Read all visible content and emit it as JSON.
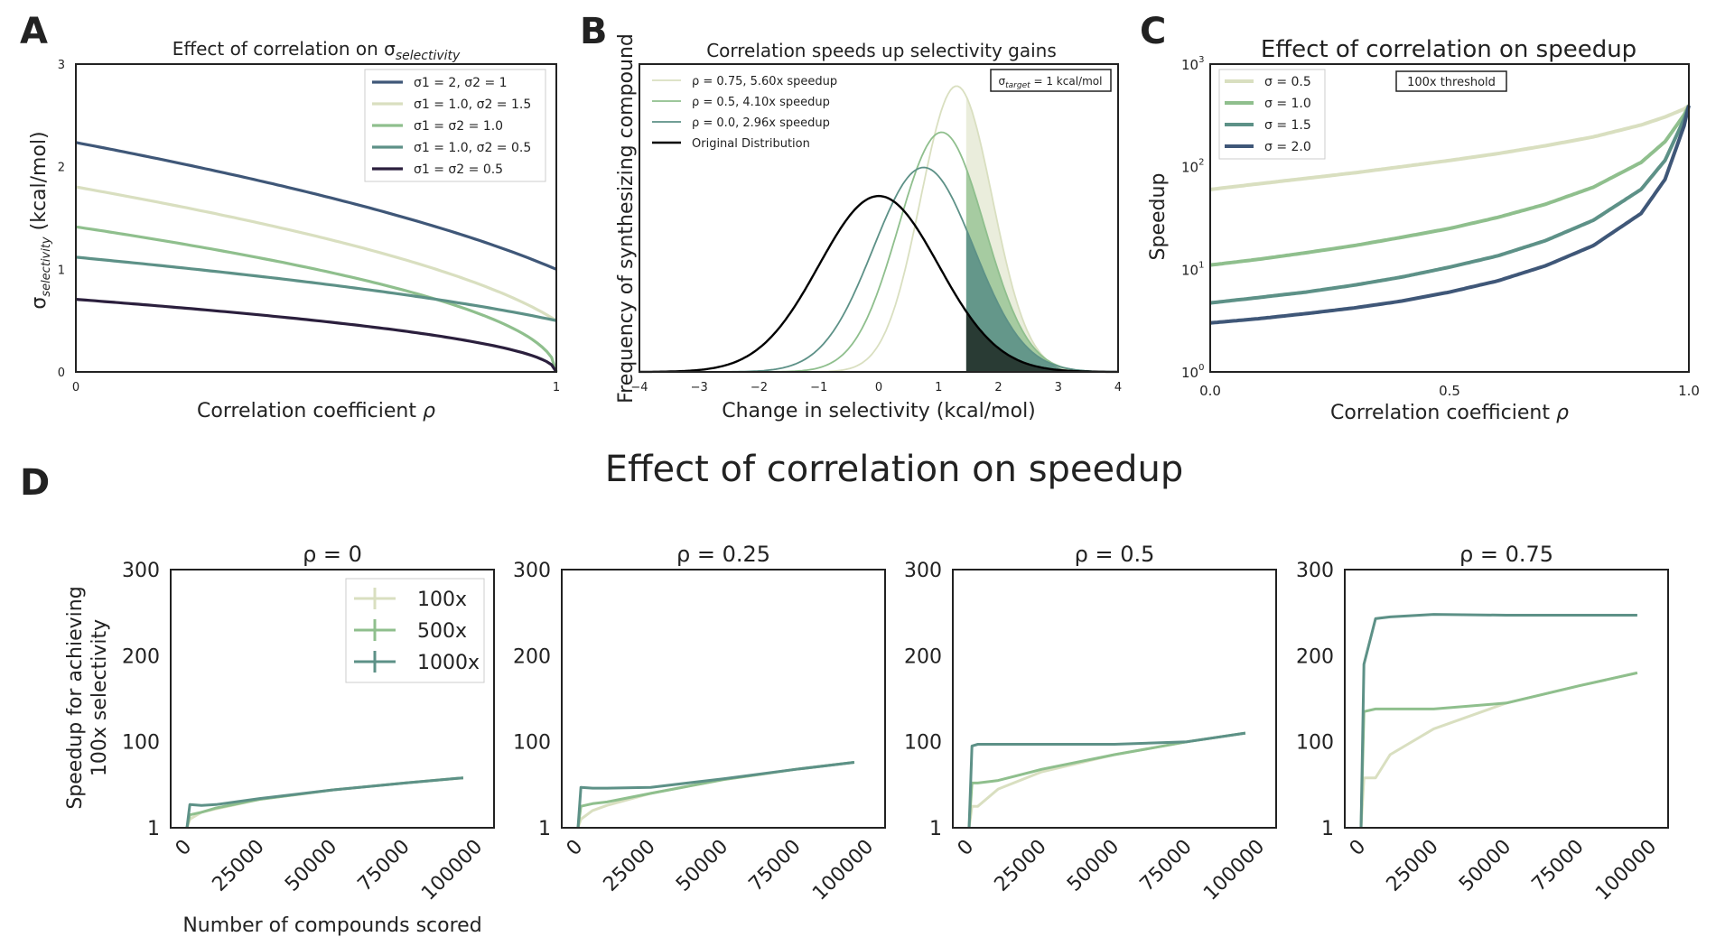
{
  "panels": {
    "A": {
      "letter": "A"
    },
    "B": {
      "letter": "B"
    },
    "C": {
      "letter": "C"
    },
    "D": {
      "letter": "D",
      "suptitle": "Effect of correlation on speedup"
    }
  },
  "chart_data": [
    {
      "id": "A",
      "type": "line",
      "title": "Effect of correlation on σ_selectivity",
      "xlabel": "Correlation coefficient ρ",
      "ylabel": "σ_selectivity (kcal/mol)",
      "xlim": [
        0,
        1
      ],
      "ylim": [
        0,
        3
      ],
      "x_ticks": [
        "0",
        "1"
      ],
      "y_ticks": [
        "0",
        "1",
        "2",
        "3"
      ],
      "legend_position": "top-right",
      "series": [
        {
          "name": "σ1 = 2, σ2 = 1",
          "s1": 2.0,
          "s2": 1.0,
          "color": "#3f5778"
        },
        {
          "name": "σ1 = 1.0, σ2 = 1.5",
          "s1": 1.0,
          "s2": 1.5,
          "color": "#d9dfc0"
        },
        {
          "name": "σ1 = σ2 = 1.0",
          "s1": 1.0,
          "s2": 1.0,
          "color": "#8fbf8d"
        },
        {
          "name": "σ1 = 1.0, σ2 = 0.5",
          "s1": 1.0,
          "s2": 0.5,
          "color": "#5d9187"
        },
        {
          "name": "σ1 = σ2 = 0.5",
          "s1": 0.5,
          "s2": 0.5,
          "color": "#2b1f3d"
        }
      ]
    },
    {
      "id": "B",
      "type": "area",
      "title": "Correlation speeds up selectivity gains",
      "xlabel": "Change in selectivity (kcal/mol)",
      "ylabel": "Frequency of synthesizing compound",
      "xlim": [
        -4,
        4
      ],
      "x_ticks": [
        "−4",
        "−3",
        "−2",
        "−1",
        "0",
        "1",
        "2",
        "3",
        "4"
      ],
      "annotation": "σtarget = 1 kcal/mol",
      "threshold": 1.45,
      "legend_position": "top-left",
      "series": [
        {
          "name": "ρ = 0.75, 5.60x speedup",
          "mean": 1.3,
          "sd": 0.6,
          "peak": 1.3,
          "color": "#d9dfc0"
        },
        {
          "name": "ρ = 0.5, 4.10x speedup",
          "mean": 1.05,
          "sd": 0.72,
          "peak": 1.09,
          "color": "#8fbf8d"
        },
        {
          "name": "ρ = 0.0, 2.96x speedup",
          "mean": 0.75,
          "sd": 0.84,
          "peak": 0.93,
          "color": "#5d9187"
        },
        {
          "name": "Original Distribution",
          "mean": 0.0,
          "sd": 1.0,
          "peak": 0.8,
          "color": "#000000"
        }
      ]
    },
    {
      "id": "C",
      "type": "line",
      "title": "Effect of correlation on speedup",
      "xlabel": "Correlation coefficient ρ",
      "ylabel": "Speedup",
      "log_y": true,
      "xlim": [
        0,
        1
      ],
      "ylim": [
        1,
        1000
      ],
      "x_ticks": [
        "0.0",
        "0.5",
        "1.0"
      ],
      "y_ticks": [
        {
          "base": "10",
          "exp": "0"
        },
        {
          "base": "10",
          "exp": "1"
        },
        {
          "base": "10",
          "exp": "2"
        },
        {
          "base": "10",
          "exp": "3"
        }
      ],
      "annotation": "100x threshold",
      "legend_position": "top-left",
      "series": [
        {
          "name": "σ = 0.5",
          "x": [
            0,
            0.1,
            0.2,
            0.3,
            0.4,
            0.5,
            0.6,
            0.7,
            0.8,
            0.9,
            0.95,
            0.99,
            1.0
          ],
          "y": [
            60,
            68,
            77,
            87,
            100,
            115,
            134,
            160,
            195,
            255,
            305,
            365,
            395
          ],
          "color": "#d9dfc0"
        },
        {
          "name": "σ = 1.0",
          "x": [
            0,
            0.1,
            0.2,
            0.3,
            0.4,
            0.5,
            0.6,
            0.7,
            0.8,
            0.9,
            0.95,
            0.99,
            1.0
          ],
          "y": [
            11,
            12.5,
            14.5,
            17,
            20.5,
            25,
            32,
            43,
            63,
            110,
            175,
            320,
            395
          ],
          "color": "#8fbf8d"
        },
        {
          "name": "σ = 1.5",
          "x": [
            0,
            0.1,
            0.2,
            0.3,
            0.4,
            0.5,
            0.6,
            0.7,
            0.8,
            0.9,
            0.95,
            0.99,
            1.0
          ],
          "y": [
            4.7,
            5.3,
            6.0,
            7.0,
            8.4,
            10.5,
            13.5,
            19,
            30,
            60,
            115,
            290,
            395
          ],
          "color": "#5d9187"
        },
        {
          "name": "σ = 2.0",
          "x": [
            0,
            0.1,
            0.2,
            0.3,
            0.4,
            0.5,
            0.6,
            0.7,
            0.8,
            0.9,
            0.95,
            0.99,
            1.0
          ],
          "y": [
            3.0,
            3.3,
            3.7,
            4.2,
            4.9,
            6.0,
            7.7,
            10.8,
            17,
            35,
            75,
            250,
            395
          ],
          "color": "#3f5778"
        }
      ]
    },
    {
      "id": "D",
      "type": "line",
      "suptitle": "Effect of correlation on speedup",
      "xlabel": "Number of compounds scored",
      "ylabel": "Speedup for achieving 100x selectivity",
      "xlim": [
        0,
        100000
      ],
      "ylim": [
        1,
        300
      ],
      "x_ticks": [
        "0",
        "25000",
        "50000",
        "75000",
        "100000"
      ],
      "y_ticks": [
        "1",
        "100",
        "200",
        "300"
      ],
      "legend_position": "top-right of first subplot",
      "legend": [
        {
          "name": "100x",
          "color": "#d9dfc0"
        },
        {
          "name": "500x",
          "color": "#8fbf8d"
        },
        {
          "name": "1000x",
          "color": "#5d9187"
        }
      ],
      "subplots": [
        {
          "title": "ρ = 0",
          "series": [
            {
              "name": "100x",
              "x": [
                0,
                1000,
                5000,
                10000,
                25000,
                50000,
                75000,
                95000
              ],
              "y": [
                1,
                10,
                18,
                22,
                33,
                44,
                52,
                58
              ],
              "color": "#d9dfc0"
            },
            {
              "name": "500x",
              "x": [
                0,
                1000,
                5000,
                10000,
                25000,
                50000,
                75000,
                95000
              ],
              "y": [
                1,
                15,
                18,
                23,
                33,
                44,
                52,
                58
              ],
              "color": "#8fbf8d"
            },
            {
              "name": "1000x",
              "x": [
                0,
                1000,
                5000,
                10000,
                25000,
                50000,
                75000,
                95000
              ],
              "y": [
                1,
                27,
                26,
                27,
                34,
                44,
                52,
                58
              ],
              "color": "#5d9187"
            }
          ]
        },
        {
          "title": "ρ = 0.25",
          "series": [
            {
              "name": "100x",
              "x": [
                0,
                1000,
                5000,
                10000,
                25000,
                50000,
                75000,
                95000
              ],
              "y": [
                1,
                10,
                20,
                26,
                40,
                56,
                68,
                76
              ],
              "color": "#d9dfc0"
            },
            {
              "name": "500x",
              "x": [
                0,
                1000,
                5000,
                10000,
                25000,
                50000,
                75000,
                95000
              ],
              "y": [
                1,
                25,
                28,
                30,
                40,
                56,
                68,
                76
              ],
              "color": "#8fbf8d"
            },
            {
              "name": "1000x",
              "x": [
                0,
                1000,
                5000,
                10000,
                25000,
                50000,
                75000,
                95000
              ],
              "y": [
                1,
                47,
                46,
                46,
                47,
                57,
                68,
                76
              ],
              "color": "#5d9187"
            }
          ]
        },
        {
          "title": "ρ = 0.5",
          "series": [
            {
              "name": "100x",
              "x": [
                0,
                1000,
                3000,
                10000,
                25000,
                50000,
                75000,
                95000
              ],
              "y": [
                1,
                25,
                25,
                45,
                65,
                85,
                100,
                110
              ],
              "color": "#d9dfc0"
            },
            {
              "name": "500x",
              "x": [
                0,
                1000,
                3000,
                10000,
                25000,
                50000,
                75000,
                95000
              ],
              "y": [
                1,
                52,
                52,
                55,
                68,
                85,
                100,
                110
              ],
              "color": "#8fbf8d"
            },
            {
              "name": "1000x",
              "x": [
                0,
                1000,
                3000,
                10000,
                25000,
                50000,
                75000,
                95000
              ],
              "y": [
                1,
                95,
                97,
                97,
                97,
                97,
                100,
                110
              ],
              "color": "#5d9187"
            }
          ]
        },
        {
          "title": "ρ = 0.75",
          "series": [
            {
              "name": "100x",
              "x": [
                0,
                1000,
                5000,
                10000,
                25000,
                50000,
                75000,
                95000
              ],
              "y": [
                1,
                58,
                58,
                85,
                115,
                145,
                165,
                180
              ],
              "color": "#d9dfc0"
            },
            {
              "name": "500x",
              "x": [
                0,
                1000,
                5000,
                10000,
                25000,
                50000,
                75000,
                95000
              ],
              "y": [
                1,
                135,
                138,
                138,
                138,
                145,
                165,
                180
              ],
              "color": "#8fbf8d"
            },
            {
              "name": "1000x",
              "x": [
                0,
                1000,
                5000,
                10000,
                25000,
                50000,
                75000,
                95000
              ],
              "y": [
                1,
                190,
                243,
                245,
                248,
                247,
                247,
                247
              ],
              "color": "#5d9187"
            }
          ]
        }
      ]
    }
  ]
}
